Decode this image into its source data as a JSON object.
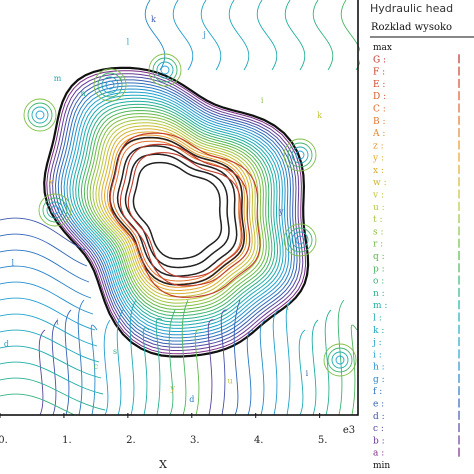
{
  "legend": {
    "title": "Hydraulic head",
    "subtitle": "Rozklad wysoko",
    "entries": [
      "max",
      "G",
      "F",
      "E",
      "D",
      "C",
      "B",
      "A",
      "z",
      "y",
      "x",
      "w",
      "v",
      "u",
      "t",
      "s",
      "r",
      "q",
      "p",
      "o",
      "n",
      "m",
      "l",
      "k",
      "j",
      "i",
      "h",
      "g",
      "f",
      "e",
      "d",
      "c",
      "b",
      "a",
      "min"
    ]
  },
  "chart_data": {
    "type": "contour",
    "title": "",
    "xlabel": "X",
    "x_multiplier": "e3",
    "x_ticks": [
      "0.",
      "1.",
      "2.",
      "3.",
      "4.",
      "5."
    ],
    "x_tick_values": [
      0,
      1,
      2,
      3,
      4,
      5
    ],
    "xlim": [
      0,
      5.6
    ],
    "ylim": [
      0,
      5.6
    ],
    "palette": [
      "#7b2a86",
      "#2f63b8",
      "#22a2d5",
      "#1fb0a0",
      "#5ab84b",
      "#b9c93e",
      "#e6a52a",
      "#e0662d",
      "#c2302a"
    ],
    "contour_labels": [
      {
        "text": "k",
        "x": 2.4,
        "y": 5.3
      },
      {
        "text": "j",
        "x": 3.2,
        "y": 5.1
      },
      {
        "text": "l",
        "x": 2.0,
        "y": 5.0
      },
      {
        "text": "m",
        "x": 0.9,
        "y": 4.5
      },
      {
        "text": "n",
        "x": 1.3,
        "y": 4.3
      },
      {
        "text": "r",
        "x": 1.9,
        "y": 4.5
      },
      {
        "text": "i",
        "x": 4.1,
        "y": 4.2
      },
      {
        "text": "k",
        "x": 5.0,
        "y": 4.0
      },
      {
        "text": "x",
        "x": 0.8,
        "y": 3.1
      },
      {
        "text": "y",
        "x": 4.4,
        "y": 2.7
      },
      {
        "text": "l",
        "x": 0.2,
        "y": 2.0
      },
      {
        "text": "d",
        "x": 0.1,
        "y": 0.9
      },
      {
        "text": "i",
        "x": 0.9,
        "y": 1.2
      },
      {
        "text": "s",
        "x": 1.8,
        "y": 0.8
      },
      {
        "text": "c",
        "x": 1.5,
        "y": 0.6
      },
      {
        "text": "i",
        "x": 4.5,
        "y": 1.4
      },
      {
        "text": "u",
        "x": 3.6,
        "y": 0.4
      },
      {
        "text": "y",
        "x": 2.7,
        "y": 0.3
      },
      {
        "text": "i",
        "x": 4.8,
        "y": 0.5
      },
      {
        "text": "d",
        "x": 3.0,
        "y": 0.15
      }
    ]
  }
}
